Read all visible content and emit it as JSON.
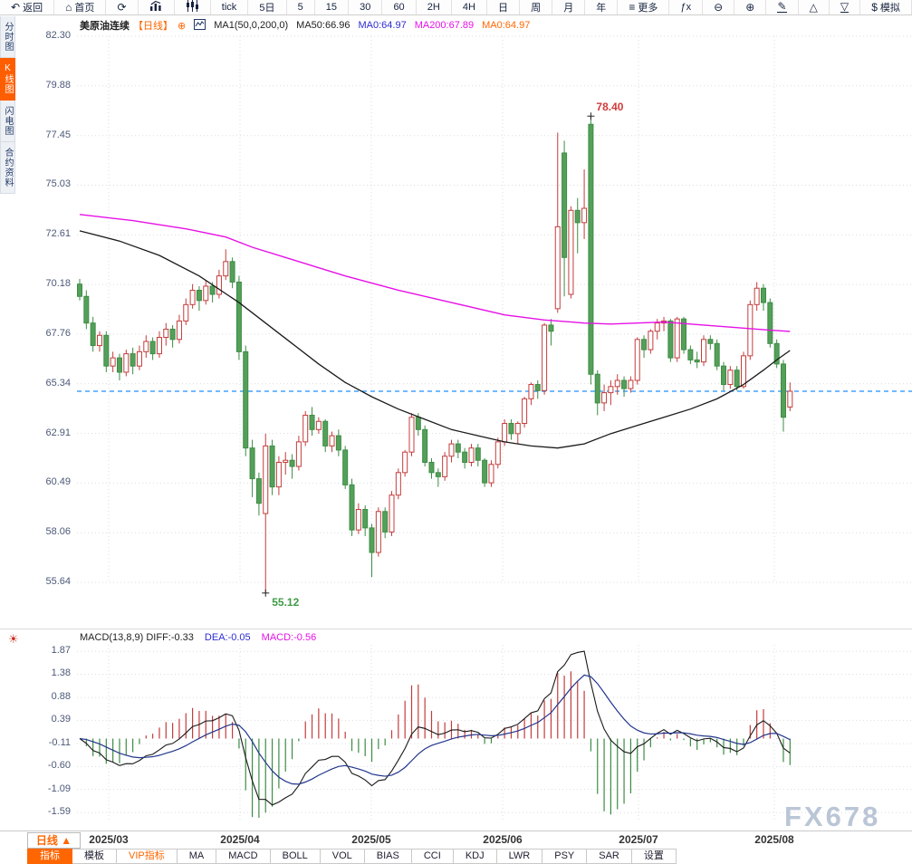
{
  "toolbar": {
    "items": [
      {
        "id": "back",
        "icon": "back-icon",
        "label": "返回"
      },
      {
        "id": "home",
        "icon": "home-icon",
        "label": "首页"
      },
      {
        "id": "refresh",
        "icon": "refresh-icon",
        "label": ""
      },
      {
        "id": "bar-chart",
        "icon": "bar-chart-icon",
        "label": ""
      },
      {
        "id": "candle-chart",
        "icon": "candle-chart-icon",
        "label": ""
      },
      {
        "id": "tick",
        "label": "tick"
      },
      {
        "id": "5d",
        "label": "5日"
      },
      {
        "id": "m5",
        "label": "5"
      },
      {
        "id": "m15",
        "label": "15"
      },
      {
        "id": "m30",
        "label": "30"
      },
      {
        "id": "m60",
        "label": "60"
      },
      {
        "id": "h2",
        "label": "2H"
      },
      {
        "id": "h4",
        "label": "4H"
      },
      {
        "id": "day",
        "label": "日"
      },
      {
        "id": "week",
        "label": "周"
      },
      {
        "id": "month",
        "label": "月"
      },
      {
        "id": "year",
        "label": "年"
      },
      {
        "id": "more",
        "icon": "menu-icon",
        "label": "更多"
      },
      {
        "id": "fx",
        "label": "ƒx"
      },
      {
        "id": "zoom-out",
        "icon": "zoom-out-icon",
        "label": ""
      },
      {
        "id": "zoom-in",
        "icon": "zoom-in-icon",
        "label": ""
      },
      {
        "id": "draw",
        "icon": "pencil-icon",
        "label": ""
      },
      {
        "id": "triangle-up",
        "icon": "triangle-up-icon",
        "label": ""
      },
      {
        "id": "triangle-down",
        "icon": "triangle-down-icon",
        "label": ""
      },
      {
        "id": "sim",
        "icon": "dollar-icon",
        "label": "模拟"
      }
    ]
  },
  "sidebar": {
    "items": [
      {
        "label": "分时图",
        "active": false
      },
      {
        "label": "K线图",
        "active": true
      },
      {
        "label": "闪电图",
        "active": false
      },
      {
        "label": "合约资料",
        "active": false
      }
    ]
  },
  "chart_header": {
    "symbol": "美原油连续",
    "period_tag": "【日线】",
    "ma_settings": "MA1(50,0,200,0)",
    "ma50": "MA50:66.96",
    "ma0_mid": "MA0:64.97",
    "ma200": "MA200:67.89",
    "ma0_last": "MA0:64.97"
  },
  "macd_header": {
    "title_and_diff": "MACD(13,8,9) DIFF:-0.33",
    "dea": "DEA:-0.05",
    "macd": "MACD:-0.56"
  },
  "chart_data": {
    "type": "candlestick",
    "title": "美原油连续 日线 (WTI crude continuous, daily)",
    "y_axis_labels": [
      "82.30",
      "79.88",
      "77.45",
      "75.03",
      "72.61",
      "70.18",
      "67.76",
      "65.34",
      "62.91",
      "60.49",
      "58.06",
      "55.64"
    ],
    "x_axis_labels": [
      "2025/03",
      "2025/04",
      "2025/05",
      "2025/06",
      "2025/07",
      "2025/08"
    ],
    "last_price": 64.97,
    "candles": [
      [
        70.2,
        70.45,
        69.4,
        69.6
      ],
      [
        69.6,
        69.9,
        68.0,
        68.3
      ],
      [
        68.3,
        68.6,
        66.9,
        67.2
      ],
      [
        67.2,
        67.9,
        66.9,
        67.7
      ],
      [
        67.7,
        67.9,
        65.9,
        66.2
      ],
      [
        66.2,
        66.9,
        65.9,
        66.6
      ],
      [
        66.6,
        66.8,
        65.5,
        65.9
      ],
      [
        65.9,
        67.0,
        65.7,
        66.8
      ],
      [
        66.8,
        67.1,
        65.8,
        66.2
      ],
      [
        66.2,
        67.2,
        66.0,
        66.9
      ],
      [
        66.9,
        67.7,
        66.6,
        67.4
      ],
      [
        67.4,
        67.6,
        66.5,
        66.8
      ],
      [
        66.8,
        67.9,
        66.6,
        67.6
      ],
      [
        67.6,
        68.3,
        67.2,
        68.0
      ],
      [
        68.0,
        68.2,
        67.1,
        67.5
      ],
      [
        67.5,
        68.7,
        67.3,
        68.4
      ],
      [
        68.4,
        69.5,
        68.2,
        69.2
      ],
      [
        69.2,
        70.2,
        69.0,
        69.9
      ],
      [
        69.9,
        70.1,
        68.9,
        69.4
      ],
      [
        69.4,
        70.4,
        69.2,
        70.1
      ],
      [
        70.1,
        70.3,
        69.3,
        69.7
      ],
      [
        69.7,
        70.9,
        69.5,
        70.6
      ],
      [
        70.6,
        71.9,
        70.4,
        71.3
      ],
      [
        71.3,
        71.5,
        70.0,
        70.3
      ],
      [
        70.3,
        70.6,
        66.5,
        66.9
      ],
      [
        66.9,
        67.2,
        61.8,
        62.2
      ],
      [
        62.2,
        62.6,
        59.8,
        60.7
      ],
      [
        60.7,
        61.0,
        58.9,
        59.5
      ],
      [
        59.0,
        62.9,
        55.12,
        62.3
      ],
      [
        62.3,
        62.6,
        59.9,
        60.3
      ],
      [
        60.3,
        61.8,
        59.9,
        61.5
      ],
      [
        61.5,
        62.0,
        60.9,
        61.6
      ],
      [
        61.6,
        61.9,
        60.7,
        61.3
      ],
      [
        61.3,
        62.8,
        61.1,
        62.5
      ],
      [
        62.5,
        64.0,
        62.3,
        63.8
      ],
      [
        63.8,
        64.2,
        62.8,
        63.1
      ],
      [
        63.1,
        63.7,
        62.9,
        63.5
      ],
      [
        63.5,
        63.6,
        62.0,
        62.3
      ],
      [
        62.3,
        63.0,
        62.0,
        62.8
      ],
      [
        62.8,
        63.1,
        61.8,
        62.1
      ],
      [
        62.1,
        62.3,
        60.2,
        60.4
      ],
      [
        60.4,
        60.7,
        57.9,
        58.2
      ],
      [
        58.2,
        59.5,
        58.0,
        59.2
      ],
      [
        59.2,
        59.4,
        57.9,
        58.3
      ],
      [
        58.3,
        58.5,
        55.9,
        57.1
      ],
      [
        57.1,
        59.3,
        56.9,
        59.1
      ],
      [
        59.1,
        59.3,
        57.8,
        58.1
      ],
      [
        58.1,
        60.1,
        57.9,
        59.9
      ],
      [
        59.9,
        61.2,
        59.7,
        61.0
      ],
      [
        61.0,
        62.1,
        60.8,
        62.0
      ],
      [
        62.0,
        63.9,
        61.8,
        63.7
      ],
      [
        63.7,
        63.9,
        62.8,
        63.1
      ],
      [
        63.1,
        63.3,
        61.3,
        61.5
      ],
      [
        61.5,
        61.7,
        60.7,
        61.0
      ],
      [
        61.0,
        61.2,
        60.3,
        60.8
      ],
      [
        60.8,
        62.0,
        60.6,
        61.8
      ],
      [
        61.8,
        62.6,
        61.5,
        62.4
      ],
      [
        62.4,
        62.6,
        61.7,
        62.0
      ],
      [
        62.0,
        62.2,
        61.2,
        61.5
      ],
      [
        61.5,
        62.4,
        61.3,
        62.2
      ],
      [
        62.2,
        62.4,
        61.3,
        61.6
      ],
      [
        61.6,
        61.7,
        60.3,
        60.5
      ],
      [
        60.5,
        61.6,
        60.3,
        61.4
      ],
      [
        61.4,
        62.7,
        61.2,
        62.5
      ],
      [
        62.5,
        63.6,
        62.3,
        63.4
      ],
      [
        63.4,
        63.6,
        62.6,
        62.9
      ],
      [
        62.9,
        63.5,
        62.4,
        63.4
      ],
      [
        63.4,
        64.7,
        63.2,
        64.6
      ],
      [
        64.6,
        65.4,
        64.3,
        65.3
      ],
      [
        65.3,
        65.5,
        64.6,
        65.0
      ],
      [
        65.0,
        68.3,
        64.8,
        68.2
      ],
      [
        68.2,
        68.5,
        67.2,
        67.9
      ],
      [
        69.0,
        77.6,
        68.8,
        73.0
      ],
      [
        76.6,
        77.2,
        69.6,
        71.5
      ],
      [
        69.7,
        74.0,
        69.5,
        73.8
      ],
      [
        73.8,
        74.4,
        71.7,
        73.2
      ],
      [
        73.2,
        75.8,
        72.4,
        73.9
      ],
      [
        78.0,
        78.4,
        65.3,
        65.8
      ],
      [
        65.8,
        66.0,
        63.8,
        64.4
      ],
      [
        64.4,
        65.3,
        64.0,
        64.9
      ],
      [
        64.9,
        65.5,
        64.3,
        65.2
      ],
      [
        65.2,
        65.8,
        64.8,
        65.5
      ],
      [
        65.5,
        65.7,
        64.7,
        65.1
      ],
      [
        65.1,
        65.7,
        64.9,
        65.5
      ],
      [
        65.5,
        67.6,
        65.3,
        67.5
      ],
      [
        67.5,
        67.7,
        66.6,
        67.0
      ],
      [
        67.0,
        68.0,
        66.8,
        67.9
      ],
      [
        67.9,
        68.5,
        67.5,
        68.3
      ],
      [
        68.3,
        68.6,
        67.9,
        68.4
      ],
      [
        68.4,
        68.5,
        66.4,
        66.6
      ],
      [
        66.6,
        68.6,
        66.4,
        68.5
      ],
      [
        68.5,
        68.6,
        66.8,
        67.0
      ],
      [
        67.0,
        67.2,
        66.3,
        66.5
      ],
      [
        66.5,
        66.9,
        66.1,
        66.4
      ],
      [
        66.4,
        67.7,
        66.2,
        67.5
      ],
      [
        67.5,
        67.7,
        67.0,
        67.3
      ],
      [
        67.3,
        67.5,
        66.0,
        66.2
      ],
      [
        66.2,
        66.4,
        65.0,
        65.3
      ],
      [
        65.3,
        66.2,
        65.1,
        66.0
      ],
      [
        66.0,
        66.2,
        65.0,
        65.2
      ],
      [
        65.2,
        66.9,
        65.1,
        66.7
      ],
      [
        66.7,
        69.4,
        66.5,
        69.2
      ],
      [
        69.2,
        70.3,
        68.9,
        70.0
      ],
      [
        70.0,
        70.2,
        68.9,
        69.3
      ],
      [
        69.3,
        69.5,
        67.1,
        67.3
      ],
      [
        67.3,
        67.5,
        66.1,
        66.3
      ],
      [
        66.3,
        66.5,
        63.0,
        63.7
      ],
      [
        64.2,
        65.4,
        64.0,
        64.97
      ]
    ],
    "ma50_points": [
      [
        0,
        72.8
      ],
      [
        6,
        72.3
      ],
      [
        12,
        71.6
      ],
      [
        18,
        70.6
      ],
      [
        24,
        69.3
      ],
      [
        28,
        68.3
      ],
      [
        32,
        67.3
      ],
      [
        36,
        66.3
      ],
      [
        40,
        65.4
      ],
      [
        44,
        64.7
      ],
      [
        48,
        64.1
      ],
      [
        52,
        63.6
      ],
      [
        56,
        63.1
      ],
      [
        60,
        62.8
      ],
      [
        64,
        62.5
      ],
      [
        68,
        62.3
      ],
      [
        72,
        62.2
      ],
      [
        76,
        62.4
      ],
      [
        80,
        62.9
      ],
      [
        84,
        63.3
      ],
      [
        88,
        63.7
      ],
      [
        92,
        64.1
      ],
      [
        96,
        64.6
      ],
      [
        100,
        65.3
      ],
      [
        103,
        66.0
      ],
      [
        105,
        66.5
      ],
      [
        107,
        66.96
      ]
    ],
    "ma200_points": [
      [
        0,
        73.6
      ],
      [
        8,
        73.3
      ],
      [
        16,
        72.9
      ],
      [
        22,
        72.5
      ],
      [
        26,
        72.0
      ],
      [
        32,
        71.4
      ],
      [
        40,
        70.6
      ],
      [
        48,
        69.9
      ],
      [
        56,
        69.3
      ],
      [
        64,
        68.7
      ],
      [
        70,
        68.45
      ],
      [
        76,
        68.3
      ],
      [
        80,
        68.25
      ],
      [
        84,
        68.3
      ],
      [
        88,
        68.35
      ],
      [
        92,
        68.25
      ],
      [
        96,
        68.15
      ],
      [
        100,
        68.05
      ],
      [
        104,
        67.95
      ],
      [
        107,
        67.89
      ]
    ],
    "annotations": {
      "high": {
        "index": 77,
        "price": 78.4,
        "label": "78.40"
      },
      "low": {
        "index": 28,
        "price": 55.12,
        "label": "55.12"
      }
    },
    "macd": {
      "type": "macd",
      "params": "13,8,9",
      "diff_last": -0.33,
      "dea_last": -0.05,
      "macd_last": -0.56,
      "y_axis_labels": [
        "1.87",
        "1.38",
        "0.88",
        "0.39",
        "-0.11",
        "-0.60",
        "-1.09",
        "-1.59"
      ]
    }
  },
  "bottom": {
    "period_tab": "日线 ▲",
    "indicator_tabs": [
      {
        "label": "指标",
        "style": "active"
      },
      {
        "label": "模板",
        "style": ""
      },
      {
        "label": "VIP指标",
        "style": "vip"
      },
      {
        "label": "MA",
        "style": ""
      },
      {
        "label": "MACD",
        "style": ""
      },
      {
        "label": "BOLL",
        "style": ""
      },
      {
        "label": "VOL",
        "style": ""
      },
      {
        "label": "BIAS",
        "style": ""
      },
      {
        "label": "CCI",
        "style": ""
      },
      {
        "label": "KDJ",
        "style": ""
      },
      {
        "label": "LWR",
        "style": ""
      },
      {
        "label": "PSY",
        "style": ""
      },
      {
        "label": "SAR",
        "style": ""
      },
      {
        "label": "设置",
        "style": ""
      }
    ]
  },
  "watermark": "FX678",
  "colors": {
    "up": "#c43c3c",
    "down": "#54a05a",
    "down_border": "#3d8c44",
    "ma50": "#1a1a1a",
    "ma200": "#e611e6",
    "diff": "#1a1a1a",
    "dea": "#23368c",
    "price_line": "#1e8fff",
    "grid": "#d9dde3",
    "accent": "#ff6600"
  }
}
